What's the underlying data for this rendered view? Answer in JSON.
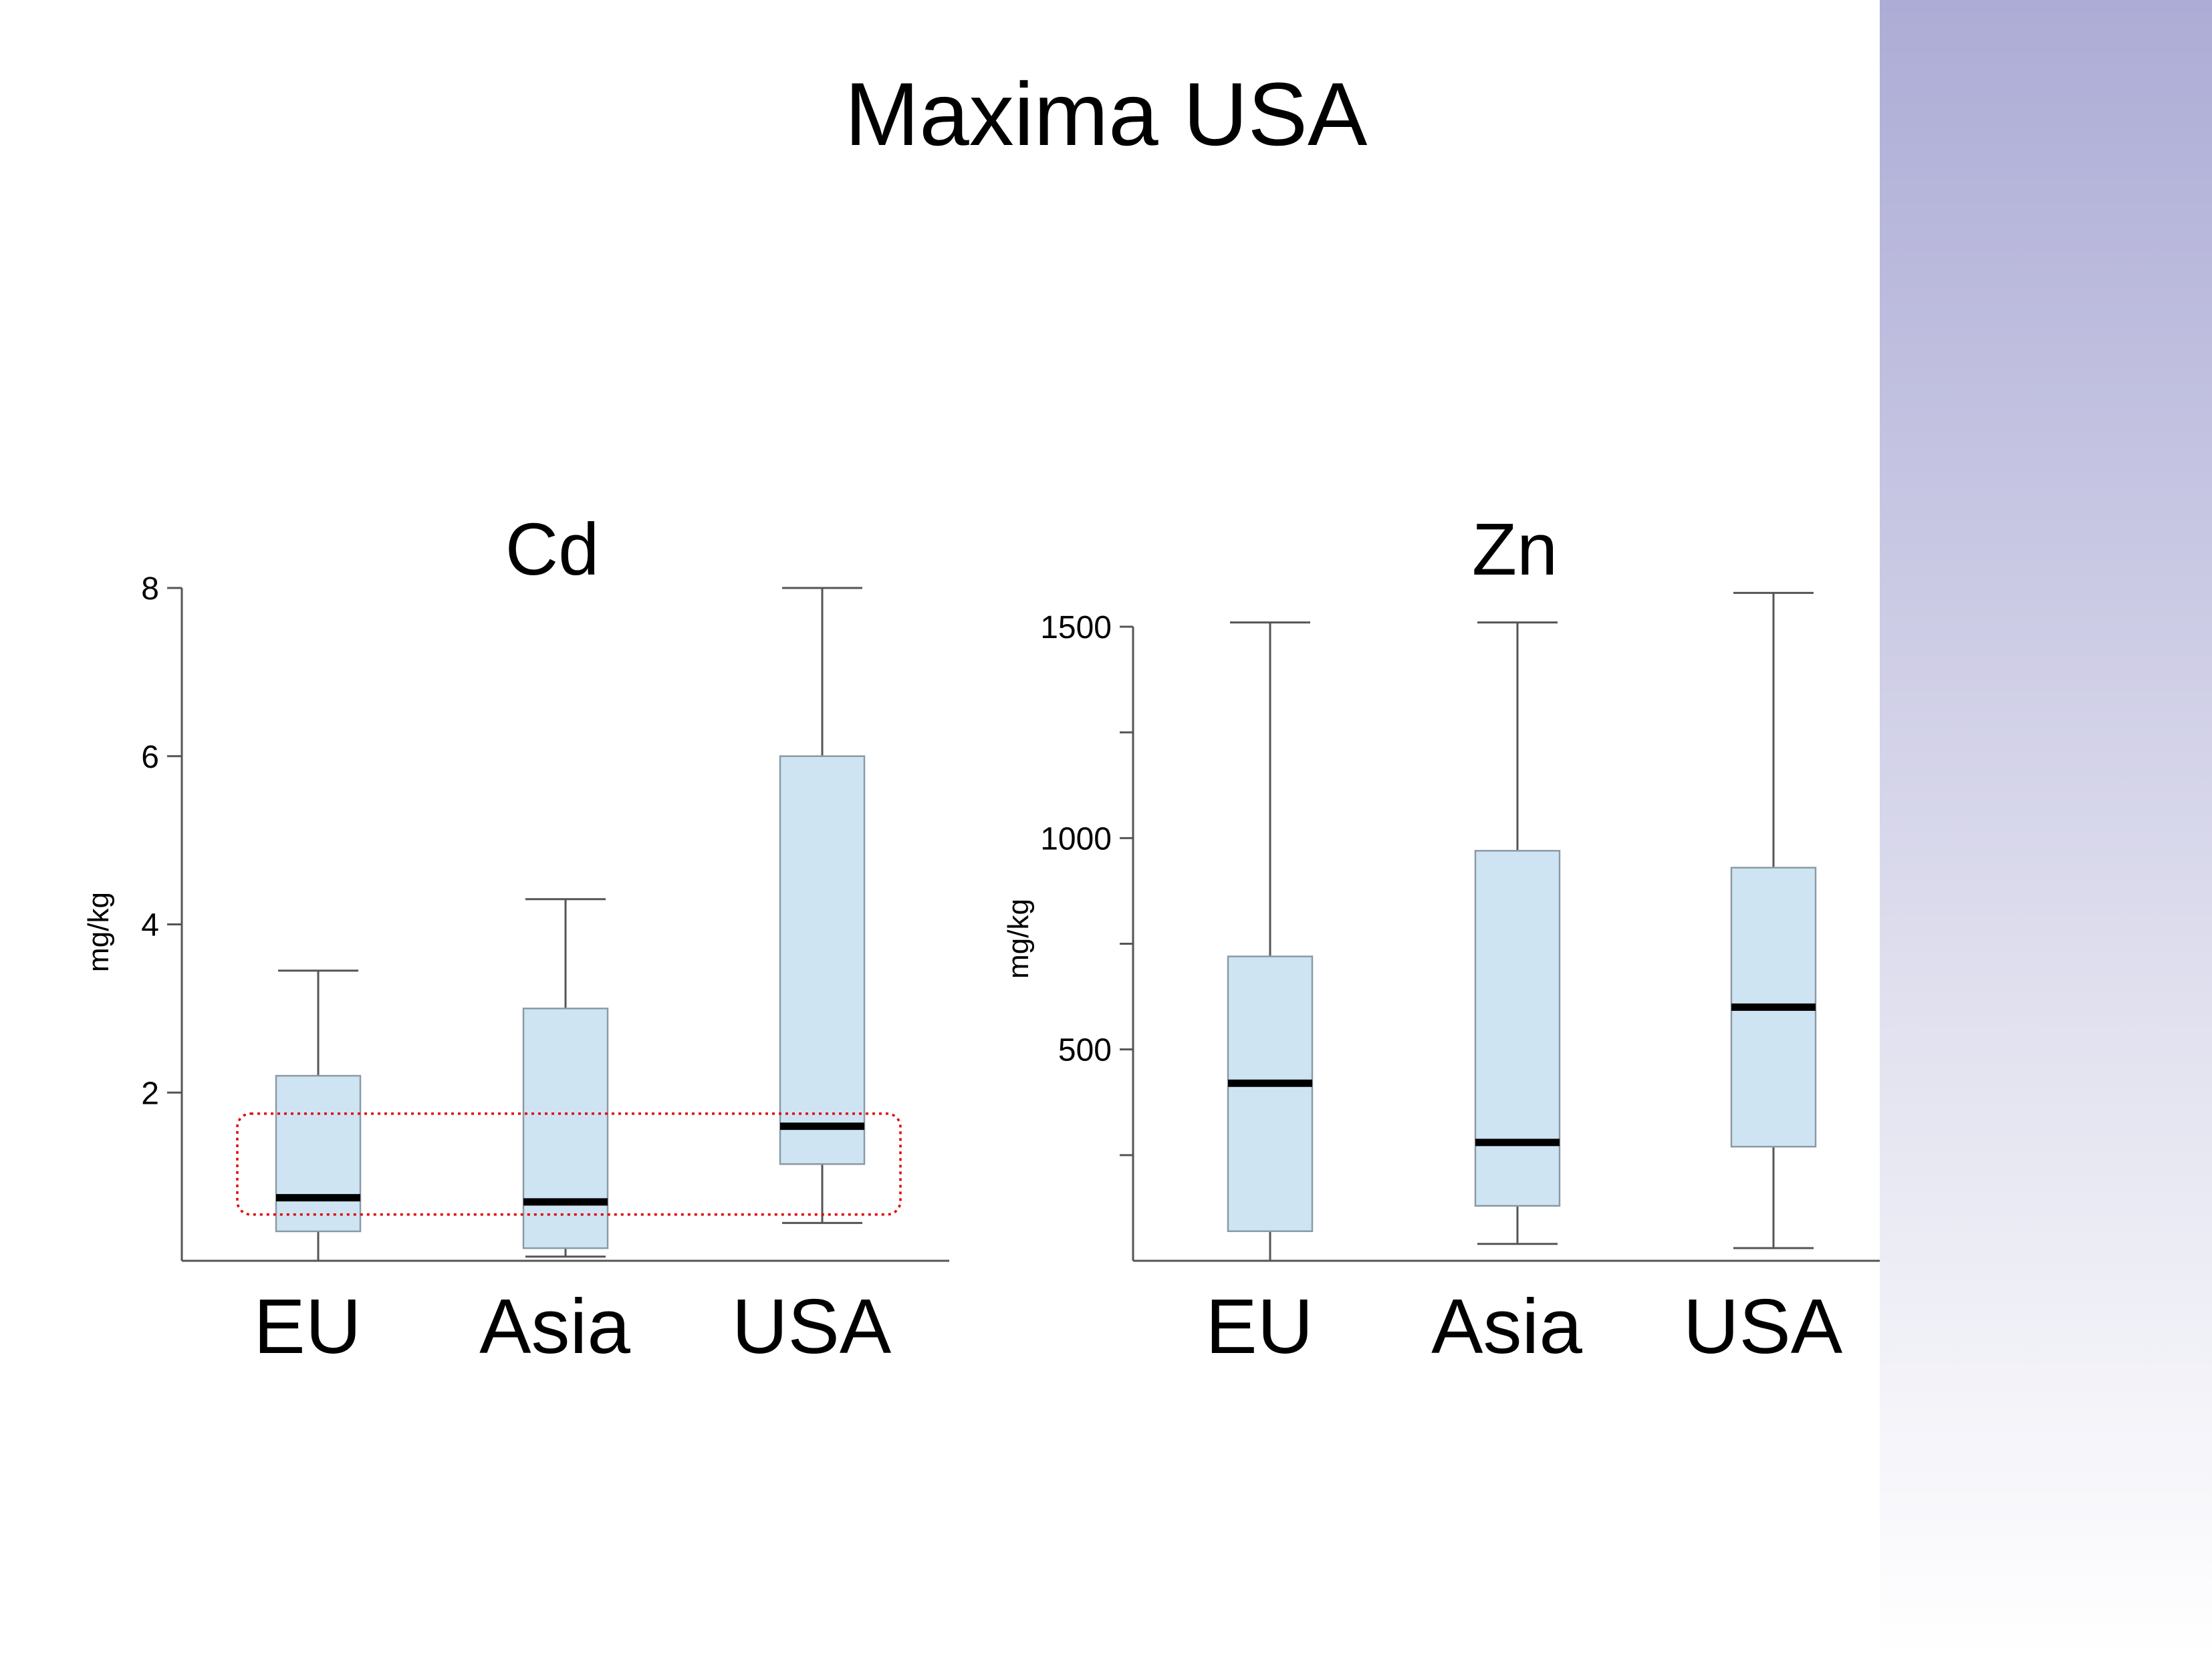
{
  "slide": {
    "title": "Maxima USA"
  },
  "colors": {
    "box_fill": "#cfe4f3",
    "box_stroke": "#8a9aa6",
    "median": "#000000",
    "highlight": "#e00000",
    "band_top": "#acacd6",
    "band_bottom": "#ffffff"
  },
  "chart_data": [
    {
      "type": "boxplot",
      "title": "Cd",
      "ylabel": "mg/kg",
      "categories": [
        "EU",
        "Asia",
        "USA"
      ],
      "ylim": [
        0,
        8
      ],
      "yticks": [
        2,
        4,
        6,
        8
      ],
      "grid": false,
      "boxes": [
        {
          "category": "EU",
          "whisker_low": 0,
          "q1": 0.35,
          "median": 0.75,
          "q3": 2.2,
          "whisker_high": 3.45
        },
        {
          "category": "Asia",
          "whisker_low": 0.05,
          "q1": 0.15,
          "median": 0.7,
          "q3": 3.0,
          "whisker_high": 4.3
        },
        {
          "category": "USA",
          "whisker_low": 0.45,
          "q1": 1.15,
          "median": 1.6,
          "q3": 6.0,
          "whisker_high": 8.0
        }
      ],
      "annotation": {
        "type": "dotted-rectangle",
        "y_range": [
          0.55,
          1.75
        ]
      }
    },
    {
      "type": "boxplot",
      "title": "Zn",
      "ylabel": "mg/kg",
      "categories": [
        "EU",
        "Asia",
        "USA"
      ],
      "ylim": [
        0,
        1500
      ],
      "yticks": [
        500,
        1000,
        1500
      ],
      "minor_yticks": [
        250,
        750,
        1250
      ],
      "grid": false,
      "boxes": [
        {
          "category": "EU",
          "whisker_low": 0,
          "q1": 70,
          "median": 420,
          "q3": 720,
          "whisker_high": 1510
        },
        {
          "category": "Asia",
          "whisker_low": 40,
          "q1": 130,
          "median": 280,
          "q3": 970,
          "whisker_high": 1510
        },
        {
          "category": "USA",
          "whisker_low": 30,
          "q1": 270,
          "median": 600,
          "q3": 930,
          "whisker_high": 1580
        }
      ]
    }
  ]
}
